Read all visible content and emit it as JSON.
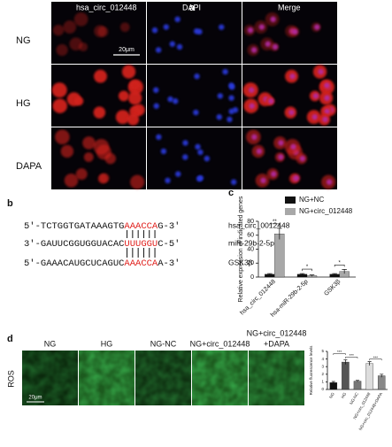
{
  "panel_a": {
    "label": "a",
    "columns": [
      "hsa_circ_012448",
      "DAPI",
      "Merge"
    ],
    "rows": [
      "NG",
      "HG",
      "DAPA"
    ],
    "scale_bar": "20μm"
  },
  "panel_b": {
    "label": "b",
    "sequences": [
      {
        "prefix": "5'-TCTGGTGATAAAGTG",
        "site": "AAACCA",
        "suffix": "G-3'",
        "name": "hsa_circ_0012448"
      },
      {
        "prefix": "3'-GAUUCGGUGGUACAC",
        "site": "UUUGGU",
        "suffix": "C-5'",
        "name": "miR-29b-2-5p"
      },
      {
        "prefix": "5'-GAAACAUGCUCAGUC",
        "site": "AAACCA",
        "suffix": "A-3'",
        "name": "GSK3β"
      }
    ]
  },
  "panel_c_label": "c",
  "panel_d": {
    "label": "d",
    "columns": [
      [
        "NG"
      ],
      [
        "HG"
      ],
      [
        "NG-NC"
      ],
      [
        "NG+circ_012448"
      ],
      [
        "NG+circ_012448",
        "+DAPA"
      ]
    ],
    "row_label": "ROS",
    "scale_bar": "20μm"
  },
  "chart_data": [
    {
      "type": "bar",
      "y_label": "Relative expression of indicated genes",
      "categories": [
        "hsa_circ_012448",
        "hsa-miR-29b-2-5p",
        "GSK3β"
      ],
      "series": [
        {
          "name": "NG+NC",
          "color": "#111111",
          "values": [
            4,
            4,
            4
          ],
          "errors": [
            1,
            1,
            1
          ]
        },
        {
          "name": "NG+circ_012448",
          "color": "#a8a8a8",
          "values": [
            62,
            2,
            8
          ],
          "errors": [
            8,
            1,
            3
          ]
        }
      ],
      "significance": [
        "**",
        "*",
        "*"
      ],
      "ylim": [
        0,
        80
      ],
      "yticks": [
        0,
        20,
        40,
        60,
        80
      ]
    },
    {
      "type": "bar",
      "y_label": "Relative fluorescence levels",
      "categories": [
        "NG",
        "HG",
        "NG-NC",
        "NG+circ_012448",
        "NG+circ_012448+DAPA"
      ],
      "values": [
        0.9,
        3.6,
        1.1,
        3.4,
        1.8
      ],
      "errors": [
        0.15,
        0.3,
        0.1,
        0.25,
        0.2
      ],
      "colors": [
        "#111111",
        "#555555",
        "#777777",
        "#dddddd",
        "#888888"
      ],
      "significance": [
        "***",
        "***",
        "***"
      ],
      "ylim": [
        0,
        5
      ],
      "yticks": [
        0,
        1,
        2,
        3,
        4,
        5
      ]
    }
  ]
}
